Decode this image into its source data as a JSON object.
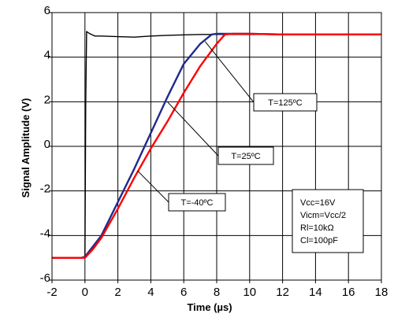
{
  "chart_data": {
    "type": "line",
    "title": "",
    "xlabel": "Time (µs)",
    "ylabel": "Signal Amplitude (V)",
    "xlim": [
      -2,
      18
    ],
    "ylim": [
      -6,
      6
    ],
    "xticks": [
      "-2",
      "0",
      "2",
      "4",
      "6",
      "8",
      "10",
      "12",
      "14",
      "16",
      "18"
    ],
    "yticks": [
      "6",
      "4",
      "2",
      "0",
      "-2",
      "-4",
      "-6"
    ],
    "grid": true,
    "series": [
      {
        "label": "T=125ºC",
        "color": "#000000",
        "points": [
          [
            -2,
            -5.0
          ],
          [
            0,
            -5.0
          ],
          [
            0.05,
            2.0
          ],
          [
            0.1,
            5.15
          ],
          [
            0.3,
            5.05
          ],
          [
            0.6,
            4.95
          ],
          [
            1,
            4.95
          ],
          [
            2,
            4.92
          ],
          [
            3,
            4.9
          ],
          [
            4,
            4.95
          ],
          [
            5,
            4.98
          ],
          [
            6,
            5.0
          ],
          [
            7,
            5.02
          ],
          [
            8,
            5.02
          ],
          [
            10,
            5.02
          ],
          [
            12,
            5.02
          ],
          [
            14,
            5.02
          ],
          [
            16,
            5.02
          ],
          [
            18,
            5.0
          ]
        ]
      },
      {
        "label": "T=25ºC",
        "color": "#1f2a8c",
        "points": [
          [
            -2,
            -5.0
          ],
          [
            -0.2,
            -5.0
          ],
          [
            0,
            -4.95
          ],
          [
            1,
            -4.0
          ],
          [
            2,
            -2.5
          ],
          [
            3,
            -1.0
          ],
          [
            4,
            0.6
          ],
          [
            5,
            2.2
          ],
          [
            6,
            3.7
          ],
          [
            7,
            4.6
          ],
          [
            7.7,
            5.02
          ],
          [
            8,
            5.05
          ],
          [
            10,
            5.05
          ],
          [
            12,
            5.02
          ],
          [
            14,
            5.02
          ],
          [
            16,
            5.02
          ],
          [
            18,
            5.02
          ]
        ]
      },
      {
        "label": "T=-40ºC",
        "color": "#ff0000",
        "points": [
          [
            -2,
            -5.0
          ],
          [
            -0.2,
            -5.0
          ],
          [
            0,
            -5.0
          ],
          [
            0.5,
            -4.6
          ],
          [
            1,
            -4.1
          ],
          [
            2,
            -2.8
          ],
          [
            3,
            -1.4
          ],
          [
            4,
            -0.1
          ],
          [
            5,
            1.1
          ],
          [
            6,
            2.4
          ],
          [
            7,
            3.6
          ],
          [
            8,
            4.6
          ],
          [
            8.5,
            5.02
          ],
          [
            9,
            5.05
          ],
          [
            10,
            5.05
          ],
          [
            12,
            5.02
          ],
          [
            14,
            5.02
          ],
          [
            16,
            5.02
          ],
          [
            18,
            5.02
          ]
        ]
      }
    ],
    "callouts": [
      {
        "label": "T=125ºC",
        "target": [
          7.3,
          4.7
        ]
      },
      {
        "label": "T=25ºC",
        "target": [
          5.0,
          2.0
        ]
      },
      {
        "label": "T=-40ºC",
        "target": [
          3.2,
          -1.1
        ]
      }
    ],
    "conditions": [
      "Vcc=16V",
      "Vicm=Vcc/2",
      "Rl=10kΩ",
      "Cl=100pF"
    ]
  }
}
